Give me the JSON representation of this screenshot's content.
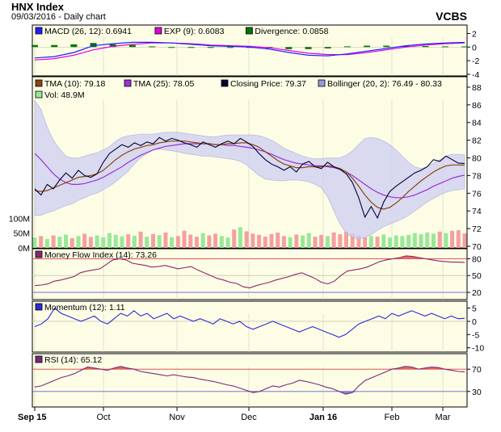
{
  "header": {
    "title": "HNX Index",
    "subtitle": "09/03/2016 - Daily chart",
    "brand": "VCBS"
  },
  "x_axis_labels": [
    "Sep 15",
    "Oct",
    "Nov",
    "Dec",
    "Jan 16",
    "Feb",
    "Mar"
  ],
  "colors": {
    "panel_background": "#fdfde6",
    "band_fill": "#ccccf2",
    "volume_up": "#98e898",
    "volume_down": "#f4a0a0",
    "close_line": "#000033",
    "tma10": "#8b4513",
    "tma25": "#9b30d9",
    "macd": "#2020ff",
    "signal": "#e000e0",
    "divergence": "#007700",
    "mfi_line": "#8a2a6a",
    "momentum_line": "#2a2ad8",
    "rsi_line": "#7a2a7a",
    "overbought": "#d84040",
    "oversold": "#6060d8"
  },
  "chart_data": [
    {
      "type": "bar",
      "panel": "MACD",
      "legend": [
        {
          "label": "MACD (26, 12): 0.6941",
          "color": "#2020ff"
        },
        {
          "label": "EXP (9): 0.6083",
          "color": "#e000e0"
        },
        {
          "label": "Divergence: 0.0858",
          "color": "#007700"
        }
      ],
      "yticks": [
        "2",
        "0",
        "-2",
        "-4"
      ],
      "ylim": [
        -4,
        3
      ],
      "series": [
        {
          "name": "MACD (26, 12)",
          "type": "line",
          "values": [
            -1.6,
            -1.4,
            -0.8,
            0.2,
            0.5,
            0.7,
            0.7,
            0.6,
            0.4,
            0.2,
            0.1,
            0.0,
            -0.3,
            -0.8,
            -1.2,
            -1.3,
            -1.0,
            -0.6,
            -0.2,
            0.2,
            0.45,
            0.6,
            0.69
          ]
        },
        {
          "name": "EXP (9)",
          "type": "line",
          "values": [
            -1.9,
            -1.7,
            -1.2,
            -0.4,
            0.1,
            0.4,
            0.6,
            0.6,
            0.5,
            0.3,
            0.2,
            0.1,
            -0.1,
            -0.5,
            -0.9,
            -1.1,
            -1.1,
            -0.8,
            -0.4,
            0.0,
            0.3,
            0.5,
            0.61
          ]
        },
        {
          "name": "Divergence",
          "type": "bar",
          "values": [
            0.3,
            0.3,
            0.4,
            0.6,
            0.4,
            0.3,
            0.1,
            0.0,
            -0.1,
            -0.1,
            -0.1,
            -0.1,
            -0.2,
            -0.3,
            -0.3,
            -0.2,
            0.1,
            0.2,
            0.2,
            0.2,
            0.15,
            0.1,
            0.09
          ]
        }
      ]
    },
    {
      "type": "line",
      "panel": "Price",
      "legend": [
        {
          "label": "TMA (10): 79.18",
          "color": "#8b4513"
        },
        {
          "label": "TMA (25): 78.05",
          "color": "#9b30d9"
        },
        {
          "label": "Closing Price: 79.37",
          "color": "#000033"
        },
        {
          "label": "Bollinger (20, 2): 76.49 - 80.33",
          "color": "#9999dd"
        },
        {
          "label": "Vol: 48.9M",
          "color": "#98e898"
        }
      ],
      "yticks": [
        "88",
        "86",
        "84",
        "82",
        "80",
        "78",
        "76",
        "74",
        "72",
        "70"
      ],
      "ylim": [
        70,
        89
      ],
      "volume_ticks": [
        "100M",
        "50M",
        "0M"
      ],
      "volume_ylim": [
        0,
        150
      ],
      "series": [
        {
          "name": "Closing Price",
          "values": [
            76.5,
            75.8,
            77.0,
            76.5,
            77.5,
            78.3,
            77.7,
            78.6,
            78.0,
            77.8,
            78.2,
            79.5,
            80.5,
            81.0,
            81.5,
            81.2,
            81.7,
            81.4,
            81.8,
            81.6,
            82.3,
            81.9,
            82.2,
            82.0,
            81.7,
            81.5,
            81.2,
            81.8,
            81.5,
            81.2,
            81.6,
            81.9,
            81.6,
            82.2,
            81.8,
            81.3,
            80.5,
            79.8,
            79.3,
            79.0,
            78.6,
            79.0,
            78.4,
            79.3,
            79.6,
            79.0,
            78.8,
            79.5,
            79.0,
            78.7,
            78.2,
            77.2,
            75.5,
            73.3,
            74.5,
            73.2,
            75.0,
            76.2,
            76.8,
            77.3,
            77.8,
            78.3,
            78.6,
            79.0,
            79.8,
            79.6,
            80.2,
            79.8,
            79.4,
            79.37
          ]
        },
        {
          "name": "TMA (10)",
          "values": [
            76.3,
            76.2,
            76.3,
            76.6,
            76.9,
            77.2,
            77.5,
            77.8,
            77.9,
            78.0,
            78.2,
            78.6,
            79.2,
            79.8,
            80.3,
            80.7,
            81.0,
            81.2,
            81.4,
            81.5,
            81.7,
            81.8,
            81.9,
            81.9,
            81.9,
            81.8,
            81.7,
            81.6,
            81.6,
            81.5,
            81.5,
            81.6,
            81.6,
            81.7,
            81.7,
            81.5,
            81.2,
            80.7,
            80.2,
            79.7,
            79.3,
            79.1,
            78.9,
            78.9,
            79.0,
            79.0,
            79.0,
            79.1,
            79.0,
            78.8,
            78.4,
            77.7,
            76.8,
            75.8,
            75.0,
            74.4,
            74.2,
            74.4,
            74.9,
            75.5,
            76.2,
            76.8,
            77.4,
            77.9,
            78.4,
            78.8,
            79.1,
            79.2,
            79.2,
            79.18
          ]
        },
        {
          "name": "TMA (25)",
          "values": [
            80.5,
            79.8,
            79.0,
            78.2,
            77.6,
            77.2,
            77.0,
            77.0,
            77.1,
            77.3,
            77.5,
            77.8,
            78.2,
            78.6,
            79.0,
            79.5,
            79.9,
            80.3,
            80.6,
            80.9,
            81.1,
            81.3,
            81.4,
            81.5,
            81.6,
            81.6,
            81.6,
            81.6,
            81.6,
            81.5,
            81.5,
            81.4,
            81.4,
            81.3,
            81.2,
            81.1,
            80.9,
            80.7,
            80.4,
            80.1,
            79.8,
            79.6,
            79.4,
            79.3,
            79.2,
            79.1,
            79.1,
            79.0,
            78.9,
            78.7,
            78.4,
            78.0,
            77.5,
            77.0,
            76.5,
            76.1,
            75.8,
            75.6,
            75.5,
            75.5,
            75.6,
            75.8,
            76.1,
            76.4,
            76.8,
            77.1,
            77.4,
            77.7,
            77.9,
            78.05
          ]
        },
        {
          "name": "Bollinger upper",
          "values": [
            86.5,
            85.5,
            83.5,
            82.0,
            81.0,
            80.2,
            80.0,
            80.0,
            80.2,
            80.4,
            80.6,
            80.9,
            81.3,
            81.9,
            82.3,
            82.5,
            82.6,
            82.7,
            82.7,
            82.7,
            82.8,
            82.9,
            82.9,
            82.9,
            82.8,
            82.7,
            82.6,
            82.5,
            82.4,
            82.4,
            82.5,
            82.6,
            82.6,
            82.6,
            82.6,
            82.6,
            82.5,
            82.3,
            82.0,
            81.6,
            81.1,
            80.8,
            80.5,
            80.2,
            80.0,
            79.9,
            79.9,
            80.0,
            80.0,
            80.0,
            80.3,
            80.8,
            81.5,
            82.2,
            82.3,
            82.2,
            81.9,
            81.5,
            80.9,
            80.2,
            79.5,
            79.0,
            78.8,
            79.0,
            79.4,
            79.8,
            80.2,
            80.4,
            80.4,
            80.33
          ]
        },
        {
          "name": "Bollinger lower",
          "values": [
            73.5,
            73.5,
            73.8,
            74.0,
            74.3,
            74.6,
            74.8,
            75.2,
            75.5,
            75.8,
            76.0,
            76.4,
            76.8,
            77.3,
            77.9,
            78.5,
            79.3,
            80.0,
            80.5,
            80.9,
            81.0,
            80.9,
            80.8,
            80.7,
            80.5,
            80.4,
            80.3,
            80.2,
            80.2,
            80.1,
            80.0,
            79.9,
            79.8,
            79.6,
            79.2,
            78.6,
            78.0,
            77.6,
            77.5,
            77.4,
            77.4,
            77.5,
            77.5,
            77.4,
            77.3,
            77.0,
            76.6,
            75.6,
            74.0,
            72.5,
            71.5,
            71.0,
            70.8,
            71.0,
            71.3,
            71.8,
            72.2,
            72.5,
            72.8,
            73.1,
            73.5,
            74.0,
            74.5,
            75.0,
            75.4,
            75.8,
            76.1,
            76.3,
            76.4,
            76.49
          ]
        },
        {
          "name": "Vol",
          "type": "bar",
          "values": [
            35,
            40,
            30,
            42,
            38,
            45,
            33,
            40,
            48,
            37,
            42,
            36,
            50,
            44,
            39,
            46,
            41,
            55,
            38,
            47,
            43,
            52,
            36,
            40,
            58,
            45,
            38,
            50,
            42,
            48,
            40,
            35,
            62,
            70,
            56,
            48,
            44,
            38,
            47,
            52,
            40,
            36,
            45,
            42,
            50,
            38,
            44,
            40,
            52,
            46,
            55,
            48,
            42,
            36,
            40,
            38,
            45,
            35,
            42,
            40,
            44,
            50,
            46,
            52,
            48,
            55,
            50,
            58,
            60,
            49
          ]
        }
      ]
    },
    {
      "type": "line",
      "panel": "Money Flow Index",
      "legend": [
        {
          "label": "Money Flow Index (14): 73.26",
          "color": "#8a2a6a"
        }
      ],
      "yticks": [
        "80",
        "50",
        "20"
      ],
      "ylim": [
        10,
        95
      ],
      "series": [
        {
          "name": "Money Flow Index (14)",
          "values": [
            32,
            33,
            35,
            40,
            42,
            45,
            48,
            55,
            58,
            60,
            62,
            70,
            78,
            80,
            78,
            72,
            70,
            68,
            65,
            66,
            68,
            65,
            62,
            64,
            66,
            60,
            55,
            50,
            45,
            42,
            38,
            36,
            30,
            28,
            32,
            35,
            38,
            42,
            45,
            48,
            52,
            55,
            50,
            45,
            38,
            35,
            40,
            50,
            58,
            60,
            62,
            65,
            70,
            75,
            78,
            80,
            82,
            85,
            84,
            82,
            80,
            78,
            76,
            75,
            74,
            74,
            73.26
          ]
        }
      ]
    },
    {
      "type": "line",
      "panel": "Momentum",
      "legend": [
        {
          "label": "Momentum (12): 1.11",
          "color": "#2a2ad8"
        }
      ],
      "yticks": [
        "5",
        "0",
        "-5",
        "-10"
      ],
      "ylim": [
        -11,
        7
      ],
      "series": [
        {
          "name": "Momentum (12)",
          "values": [
            -2,
            -1,
            1,
            5,
            3,
            2,
            1,
            0,
            1,
            2,
            0,
            -1,
            1,
            3,
            2,
            4,
            2,
            3,
            1,
            2,
            3,
            1,
            2,
            1,
            0,
            1,
            0,
            -1,
            1,
            0,
            -1,
            0,
            -2,
            -3,
            -2,
            -1,
            0,
            -1,
            -2,
            -3,
            -4,
            -3,
            -2,
            -3,
            -4,
            -5,
            -6,
            -5,
            -3,
            -1,
            0,
            1,
            2,
            1,
            3,
            2,
            3,
            4,
            3,
            2,
            3,
            2,
            1,
            2,
            1,
            1.11
          ]
        }
      ]
    },
    {
      "type": "line",
      "panel": "RSI",
      "legend": [
        {
          "label": "RSI (14): 65.12",
          "color": "#7a2a7a"
        }
      ],
      "yticks": [
        "70",
        "30"
      ],
      "ylim": [
        5,
        95
      ],
      "series": [
        {
          "name": "RSI (14)",
          "values": [
            38,
            40,
            45,
            50,
            55,
            58,
            62,
            68,
            74,
            72,
            70,
            68,
            72,
            75,
            72,
            70,
            66,
            64,
            62,
            60,
            58,
            60,
            58,
            56,
            55,
            52,
            50,
            48,
            45,
            42,
            40,
            36,
            32,
            28,
            30,
            35,
            40,
            38,
            42,
            45,
            50,
            48,
            45,
            42,
            38,
            35,
            30,
            25,
            28,
            40,
            50,
            55,
            60,
            65,
            70,
            72,
            75,
            74,
            70,
            72,
            74,
            73,
            70,
            68,
            66,
            65.12
          ]
        }
      ]
    }
  ]
}
